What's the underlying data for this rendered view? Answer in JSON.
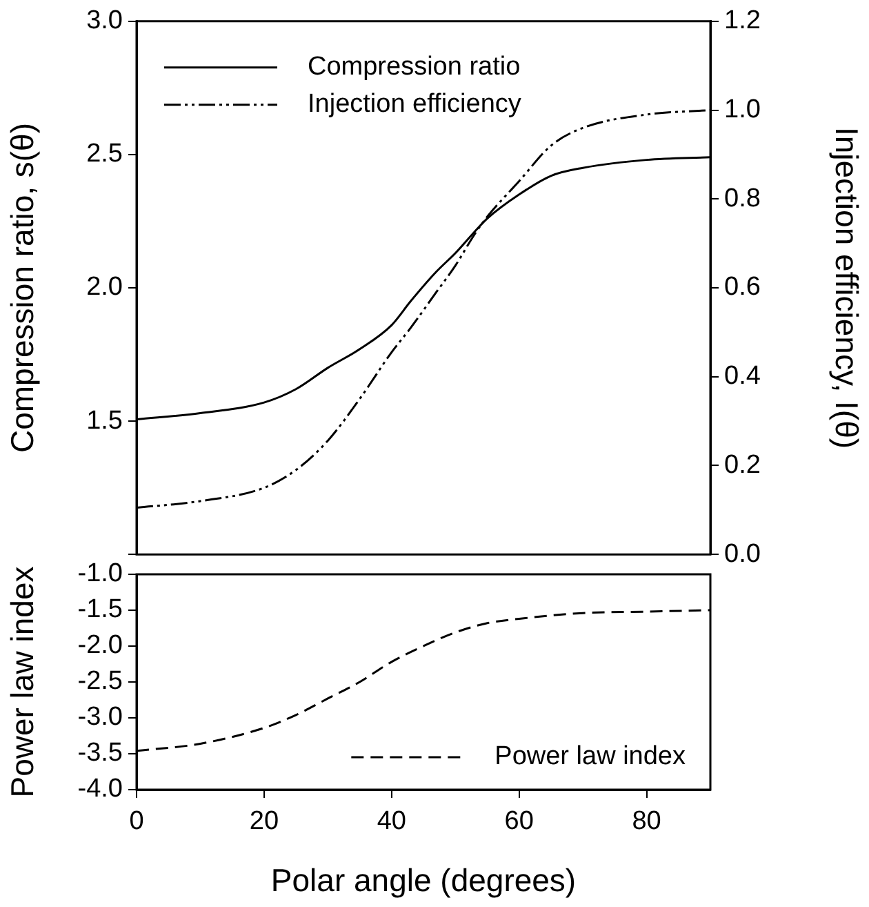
{
  "chart_data": [
    {
      "type": "line",
      "ylabel": "Compression ratio, s(θ)",
      "y2label": "Injection efficiency, I(θ)",
      "xlim": [
        0,
        90
      ],
      "xticks": [
        0,
        20,
        40,
        60,
        80
      ],
      "ylim": [
        1,
        3
      ],
      "yticks": [
        {
          "value": 1,
          "label": null
        },
        {
          "value": 1.5,
          "label": "1.5"
        },
        {
          "value": 2,
          "label": "2.0"
        },
        {
          "value": 2.5,
          "label": "2.5"
        },
        {
          "value": 3,
          "label": "3.0"
        }
      ],
      "y2lim": [
        0,
        1.2
      ],
      "y2ticks": [
        {
          "value": 0,
          "label": "0.0"
        },
        {
          "value": 0.2,
          "label": "0.2"
        },
        {
          "value": 0.4,
          "label": "0.4"
        },
        {
          "value": 0.6,
          "label": "0.6"
        },
        {
          "value": 0.8,
          "label": "0.8"
        },
        {
          "value": 1,
          "label": "1.0"
        },
        {
          "value": 1.2,
          "label": "1.2"
        }
      ],
      "tick_labels": "y",
      "grid": false,
      "legend": "top left",
      "marker": "none",
      "series": [
        {
          "name": "Compression ratio",
          "color": "#000000",
          "line_style": "solid",
          "x": [
            0,
            10,
            20,
            25,
            30,
            35,
            40,
            43,
            47,
            50,
            53,
            55,
            60,
            65,
            70,
            80,
            90
          ],
          "values": [
            1.507,
            1.53,
            1.57,
            1.62,
            1.7,
            1.77,
            1.86,
            1.95,
            2.06,
            2.13,
            2.21,
            2.26,
            2.35,
            2.42,
            2.45,
            2.48,
            2.49
          ]
        },
        {
          "name": "Injection efficiency",
          "color": "#000000",
          "line_style": "dashdotdot",
          "axis": "y2",
          "x": [
            0,
            10,
            20,
            25,
            30,
            35,
            40,
            43,
            47,
            50,
            53,
            55,
            60,
            65,
            70,
            80,
            90
          ],
          "values": [
            0.105,
            0.12,
            0.15,
            0.19,
            0.256,
            0.35,
            0.455,
            0.51,
            0.59,
            0.65,
            0.72,
            0.76,
            0.84,
            0.92,
            0.96,
            0.99,
            1.0
          ]
        }
      ]
    },
    {
      "type": "line",
      "ylabel": "Power law index",
      "xlabel": "Polar angle (degrees)",
      "xlim": [
        0,
        90
      ],
      "xticks": [
        0,
        20,
        40,
        60,
        80
      ],
      "ylim": [
        -4,
        -1
      ],
      "yticks": [
        {
          "value": -4,
          "label": "-4.0"
        },
        {
          "value": -3.5,
          "label": "-3.5"
        },
        {
          "value": -3,
          "label": "-3.0"
        },
        {
          "value": -2.5,
          "label": "-2.5"
        },
        {
          "value": -2,
          "label": "-2.0"
        },
        {
          "value": -1.5,
          "label": "-1.5"
        },
        {
          "value": -1,
          "label": "-1.0"
        }
      ],
      "grid": false,
      "legend": "bottom right",
      "marker": "none",
      "series": [
        {
          "name": "Power law index",
          "color": "#000000",
          "line_style": "dashed",
          "x": [
            0,
            10,
            20,
            25,
            30,
            35,
            40,
            45,
            50,
            55,
            60,
            70,
            80,
            90
          ],
          "values": [
            -3.46,
            -3.36,
            -3.14,
            -2.96,
            -2.73,
            -2.5,
            -2.22,
            -2.0,
            -1.81,
            -1.68,
            -1.62,
            -1.54,
            -1.52,
            -1.5
          ]
        }
      ]
    }
  ]
}
